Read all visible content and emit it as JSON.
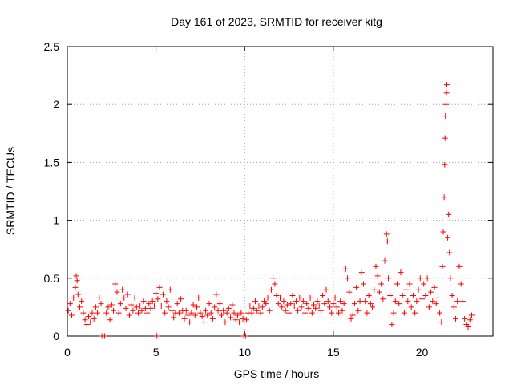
{
  "chart_data": {
    "type": "scatter",
    "title": "Day 161 of 2023, SRMTID for receiver kitg",
    "xlabel": "GPS time / hours",
    "ylabel": "SRMTID / TECUs",
    "xlim": [
      0,
      24
    ],
    "ylim": [
      0,
      2.5
    ],
    "x_ticks": [
      0,
      5,
      10,
      15,
      20
    ],
    "x_tick_labels": [
      "0",
      "5",
      "10",
      "15",
      "20"
    ],
    "y_ticks": [
      0,
      0.5,
      1,
      1.5,
      2,
      2.5
    ],
    "y_tick_labels": [
      "0",
      "0.5",
      "1",
      "1.5",
      "2",
      "2.5"
    ],
    "grid": true,
    "marker": "+",
    "marker_color": "#ff0000",
    "series": [
      {
        "name": "kitg",
        "points": [
          [
            0.05,
            0.22
          ],
          [
            0.15,
            0.28
          ],
          [
            0.25,
            0.18
          ],
          [
            0.35,
            0.33
          ],
          [
            0.45,
            0.42
          ],
          [
            0.5,
            0.52
          ],
          [
            0.55,
            0.48
          ],
          [
            0.6,
            0.36
          ],
          [
            0.7,
            0.25
          ],
          [
            0.8,
            0.3
          ],
          [
            0.9,
            0.2
          ],
          [
            1.0,
            0.14
          ],
          [
            1.1,
            0.1
          ],
          [
            1.2,
            0.17
          ],
          [
            1.3,
            0.12
          ],
          [
            1.4,
            0.2
          ],
          [
            1.5,
            0.15
          ],
          [
            1.6,
            0.25
          ],
          [
            1.7,
            0.2
          ],
          [
            1.8,
            0.33
          ],
          [
            1.9,
            0.28
          ],
          [
            1.95,
            0.0
          ],
          [
            2.1,
            0.0
          ],
          [
            2.2,
            0.2
          ],
          [
            2.3,
            0.25
          ],
          [
            2.4,
            0.14
          ],
          [
            2.5,
            0.27
          ],
          [
            2.6,
            0.22
          ],
          [
            2.7,
            0.45
          ],
          [
            2.8,
            0.38
          ],
          [
            2.9,
            0.2
          ],
          [
            3.0,
            0.28
          ],
          [
            3.1,
            0.4
          ],
          [
            3.2,
            0.33
          ],
          [
            3.3,
            0.24
          ],
          [
            3.4,
            0.36
          ],
          [
            3.5,
            0.18
          ],
          [
            3.6,
            0.27
          ],
          [
            3.7,
            0.22
          ],
          [
            3.8,
            0.33
          ],
          [
            3.9,
            0.25
          ],
          [
            4.0,
            0.2
          ],
          [
            4.1,
            0.26
          ],
          [
            4.2,
            0.22
          ],
          [
            4.3,
            0.3
          ],
          [
            4.4,
            0.24
          ],
          [
            4.5,
            0.2
          ],
          [
            4.6,
            0.28
          ],
          [
            4.7,
            0.24
          ],
          [
            4.8,
            0.3
          ],
          [
            4.9,
            0.26
          ],
          [
            5.0,
            0.37
          ],
          [
            5.05,
            0.0
          ],
          [
            5.1,
            0.32
          ],
          [
            5.2,
            0.42
          ],
          [
            5.3,
            0.26
          ],
          [
            5.4,
            0.36
          ],
          [
            5.5,
            0.2
          ],
          [
            5.6,
            0.3
          ],
          [
            5.7,
            0.25
          ],
          [
            5.8,
            0.4
          ],
          [
            5.9,
            0.22
          ],
          [
            6.0,
            0.16
          ],
          [
            6.1,
            0.2
          ],
          [
            6.2,
            0.28
          ],
          [
            6.3,
            0.2
          ],
          [
            6.4,
            0.32
          ],
          [
            6.5,
            0.22
          ],
          [
            6.6,
            0.15
          ],
          [
            6.7,
            0.22
          ],
          [
            6.8,
            0.18
          ],
          [
            6.9,
            0.12
          ],
          [
            7.0,
            0.2
          ],
          [
            7.1,
            0.27
          ],
          [
            7.2,
            0.18
          ],
          [
            7.3,
            0.25
          ],
          [
            7.4,
            0.33
          ],
          [
            7.5,
            0.2
          ],
          [
            7.6,
            0.17
          ],
          [
            7.7,
            0.12
          ],
          [
            7.8,
            0.22
          ],
          [
            7.9,
            0.18
          ],
          [
            8.0,
            0.28
          ],
          [
            8.1,
            0.2
          ],
          [
            8.2,
            0.15
          ],
          [
            8.3,
            0.25
          ],
          [
            8.4,
            0.36
          ],
          [
            8.5,
            0.22
          ],
          [
            8.6,
            0.28
          ],
          [
            8.7,
            0.18
          ],
          [
            8.8,
            0.22
          ],
          [
            8.9,
            0.12
          ],
          [
            9.0,
            0.2
          ],
          [
            9.1,
            0.24
          ],
          [
            9.2,
            0.16
          ],
          [
            9.3,
            0.27
          ],
          [
            9.4,
            0.2
          ],
          [
            9.5,
            0.14
          ],
          [
            9.6,
            0.18
          ],
          [
            9.7,
            0.12
          ],
          [
            9.8,
            0.2
          ],
          [
            9.9,
            0.15
          ],
          [
            9.95,
            0.0
          ],
          [
            10.05,
            0.0
          ],
          [
            10.1,
            0.14
          ],
          [
            10.2,
            0.2
          ],
          [
            10.3,
            0.26
          ],
          [
            10.4,
            0.2
          ],
          [
            10.5,
            0.24
          ],
          [
            10.6,
            0.3
          ],
          [
            10.7,
            0.22
          ],
          [
            10.8,
            0.26
          ],
          [
            10.9,
            0.2
          ],
          [
            11.0,
            0.25
          ],
          [
            11.1,
            0.3
          ],
          [
            11.2,
            0.28
          ],
          [
            11.3,
            0.33
          ],
          [
            11.4,
            0.22
          ],
          [
            11.5,
            0.4
          ],
          [
            11.6,
            0.5
          ],
          [
            11.7,
            0.45
          ],
          [
            11.8,
            0.35
          ],
          [
            11.9,
            0.28
          ],
          [
            12.0,
            0.33
          ],
          [
            12.1,
            0.25
          ],
          [
            12.2,
            0.3
          ],
          [
            12.3,
            0.22
          ],
          [
            12.4,
            0.27
          ],
          [
            12.5,
            0.2
          ],
          [
            12.6,
            0.28
          ],
          [
            12.7,
            0.35
          ],
          [
            12.8,
            0.26
          ],
          [
            12.9,
            0.3
          ],
          [
            13.0,
            0.22
          ],
          [
            13.1,
            0.33
          ],
          [
            13.2,
            0.25
          ],
          [
            13.3,
            0.3
          ],
          [
            13.4,
            0.2
          ],
          [
            13.5,
            0.28
          ],
          [
            13.6,
            0.24
          ],
          [
            13.7,
            0.33
          ],
          [
            13.8,
            0.2
          ],
          [
            13.9,
            0.27
          ],
          [
            14.0,
            0.24
          ],
          [
            14.1,
            0.3
          ],
          [
            14.2,
            0.26
          ],
          [
            14.3,
            0.22
          ],
          [
            14.4,
            0.35
          ],
          [
            14.5,
            0.28
          ],
          [
            14.6,
            0.4
          ],
          [
            14.7,
            0.3
          ],
          [
            14.8,
            0.25
          ],
          [
            14.9,
            0.2
          ],
          [
            15.0,
            0.28
          ],
          [
            15.1,
            0.33
          ],
          [
            15.2,
            0.25
          ],
          [
            15.3,
            0.2
          ],
          [
            15.4,
            0.3
          ],
          [
            15.5,
            0.22
          ],
          [
            15.6,
            0.28
          ],
          [
            15.7,
            0.58
          ],
          [
            15.8,
            0.5
          ],
          [
            15.9,
            0.38
          ],
          [
            16.0,
            0.15
          ],
          [
            16.1,
            0.18
          ],
          [
            16.2,
            0.28
          ],
          [
            16.3,
            0.42
          ],
          [
            16.4,
            0.22
          ],
          [
            16.5,
            0.3
          ],
          [
            16.6,
            0.55
          ],
          [
            16.7,
            0.45
          ],
          [
            16.8,
            0.3
          ],
          [
            16.9,
            0.2
          ],
          [
            17.0,
            0.35
          ],
          [
            17.1,
            0.28
          ],
          [
            17.2,
            0.25
          ],
          [
            17.3,
            0.4
          ],
          [
            17.4,
            0.6
          ],
          [
            17.5,
            0.52
          ],
          [
            17.6,
            0.38
          ],
          [
            17.7,
            0.45
          ],
          [
            17.8,
            0.32
          ],
          [
            17.9,
            0.65
          ],
          [
            18.0,
            0.88
          ],
          [
            18.05,
            0.82
          ],
          [
            18.1,
            0.5
          ],
          [
            18.2,
            0.35
          ],
          [
            18.3,
            0.1
          ],
          [
            18.4,
            0.2
          ],
          [
            18.5,
            0.3
          ],
          [
            18.6,
            0.45
          ],
          [
            18.7,
            0.28
          ],
          [
            18.8,
            0.55
          ],
          [
            18.9,
            0.35
          ],
          [
            19.0,
            0.2
          ],
          [
            19.1,
            0.4
          ],
          [
            19.2,
            0.3
          ],
          [
            19.3,
            0.45
          ],
          [
            19.4,
            0.25
          ],
          [
            19.5,
            0.35
          ],
          [
            19.6,
            0.2
          ],
          [
            19.7,
            0.3
          ],
          [
            19.8,
            0.4
          ],
          [
            19.9,
            0.5
          ],
          [
            20.0,
            0.32
          ],
          [
            20.1,
            0.45
          ],
          [
            20.2,
            0.35
          ],
          [
            20.3,
            0.5
          ],
          [
            20.4,
            0.25
          ],
          [
            20.5,
            0.38
          ],
          [
            20.6,
            0.3
          ],
          [
            20.7,
            0.42
          ],
          [
            20.8,
            0.28
          ],
          [
            20.9,
            0.33
          ],
          [
            21.0,
            0.2
          ],
          [
            21.1,
            0.12
          ],
          [
            21.15,
            0.6
          ],
          [
            21.2,
            0.9
          ],
          [
            21.25,
            1.2
          ],
          [
            21.28,
            1.48
          ],
          [
            21.3,
            1.71
          ],
          [
            21.32,
            1.9
          ],
          [
            21.35,
            2.0
          ],
          [
            21.38,
            2.1
          ],
          [
            21.4,
            2.17
          ],
          [
            21.45,
            0.85
          ],
          [
            21.5,
            1.05
          ],
          [
            21.55,
            0.72
          ],
          [
            21.6,
            0.5
          ],
          [
            21.7,
            0.35
          ],
          [
            21.8,
            0.25
          ],
          [
            21.9,
            0.15
          ],
          [
            22.0,
            0.3
          ],
          [
            22.1,
            0.6
          ],
          [
            22.2,
            0.45
          ],
          [
            22.3,
            0.3
          ],
          [
            22.4,
            0.15
          ],
          [
            22.5,
            0.1
          ],
          [
            22.6,
            0.08
          ],
          [
            22.7,
            0.14
          ],
          [
            22.8,
            0.18
          ]
        ]
      }
    ]
  }
}
